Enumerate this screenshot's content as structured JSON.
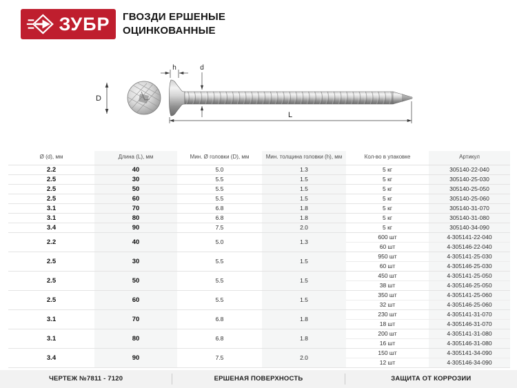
{
  "header": {
    "brand": "ЗУБР",
    "brand_color": "#bf1e2e",
    "title_line1": "ГВОЗДИ ЕРШЕНЫЕ",
    "title_line2": "ОЦИНКОВАННЫЕ"
  },
  "diagram": {
    "dim_labels": {
      "head_diameter": "D",
      "head_thickness": "h",
      "shank_diameter": "d",
      "length": "L"
    }
  },
  "table": {
    "shade_color": "#f5f6f6",
    "columns": [
      "Ø (d), мм",
      "Длина (L), мм",
      "Мин. Ø головки (D), мм",
      "Мин. толщина головки (h), мм",
      "Кол-во в упаковке",
      "Артикул"
    ],
    "rows": [
      {
        "d": "2.2",
        "l": "40",
        "hd": "5.0",
        "hh": "1.3",
        "packs": [
          "5 кг"
        ],
        "skus": [
          "305140-22-040"
        ]
      },
      {
        "d": "2.5",
        "l": "30",
        "hd": "5.5",
        "hh": "1.5",
        "packs": [
          "5 кг"
        ],
        "skus": [
          "305140-25-030"
        ]
      },
      {
        "d": "2.5",
        "l": "50",
        "hd": "5.5",
        "hh": "1.5",
        "packs": [
          "5 кг"
        ],
        "skus": [
          "305140-25-050"
        ]
      },
      {
        "d": "2.5",
        "l": "60",
        "hd": "5.5",
        "hh": "1.5",
        "packs": [
          "5 кг"
        ],
        "skus": [
          "305140-25-060"
        ]
      },
      {
        "d": "3.1",
        "l": "70",
        "hd": "6.8",
        "hh": "1.8",
        "packs": [
          "5 кг"
        ],
        "skus": [
          "305140-31-070"
        ]
      },
      {
        "d": "3.1",
        "l": "80",
        "hd": "6.8",
        "hh": "1.8",
        "packs": [
          "5 кг"
        ],
        "skus": [
          "305140-31-080"
        ]
      },
      {
        "d": "3.4",
        "l": "90",
        "hd": "7.5",
        "hh": "2.0",
        "packs": [
          "5 кг"
        ],
        "skus": [
          "305140-34-090"
        ]
      },
      {
        "d": "2.2",
        "l": "40",
        "hd": "5.0",
        "hh": "1.3",
        "packs": [
          "600 шт",
          "60 шт"
        ],
        "skus": [
          "4-305141-22-040",
          "4-305146-22-040"
        ]
      },
      {
        "d": "2.5",
        "l": "30",
        "hd": "5.5",
        "hh": "1.5",
        "packs": [
          "950 шт",
          "60 шт"
        ],
        "skus": [
          "4-305141-25-030",
          "4-305146-25-030"
        ]
      },
      {
        "d": "2.5",
        "l": "50",
        "hd": "5.5",
        "hh": "1.5",
        "packs": [
          "450 шт",
          "38 шт"
        ],
        "skus": [
          "4-305141-25-050",
          "4-305146-25-050"
        ]
      },
      {
        "d": "2.5",
        "l": "60",
        "hd": "5.5",
        "hh": "1.5",
        "packs": [
          "350 шт",
          "32 шт"
        ],
        "skus": [
          "4-305141-25-060",
          "4-305146-25-060"
        ]
      },
      {
        "d": "3.1",
        "l": "70",
        "hd": "6.8",
        "hh": "1.8",
        "packs": [
          "230 шт",
          "18 шт"
        ],
        "skus": [
          "4-305141-31-070",
          "4-305146-31-070"
        ]
      },
      {
        "d": "3.1",
        "l": "80",
        "hd": "6.8",
        "hh": "1.8",
        "packs": [
          "200 шт",
          "16 шт"
        ],
        "skus": [
          "4-305141-31-080",
          "4-305146-31-080"
        ]
      },
      {
        "d": "3.4",
        "l": "90",
        "hd": "7.5",
        "hh": "2.0",
        "packs": [
          "150 шт",
          "12 шт"
        ],
        "skus": [
          "4-305141-34-090",
          "4-305146-34-090"
        ]
      }
    ]
  },
  "footer": {
    "items": [
      "ЧЕРТЕЖ №7811 - 7120",
      "ЕРШЕНАЯ ПОВЕРХНОСТЬ",
      "ЗАЩИТА ОТ КОРРОЗИИ"
    ]
  }
}
